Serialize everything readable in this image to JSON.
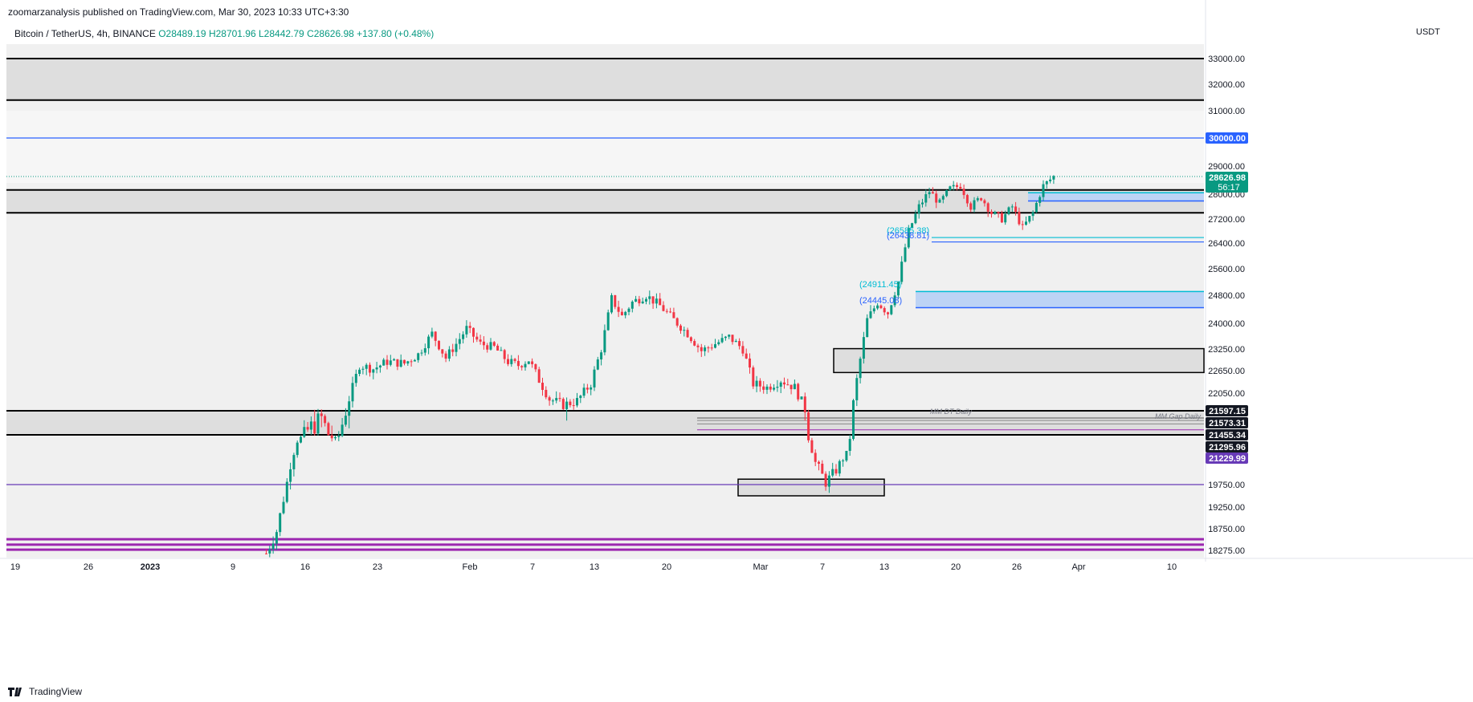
{
  "header": {
    "published": "zoomarzanalysis published on TradingView.com, Mar 30, 2023 10:33 UTC+3:30"
  },
  "legend": {
    "symbol": "Bitcoin / TetherUS, 4h, BINANCE",
    "open": "O28489.19",
    "high": "H28701.96",
    "low": "L28442.79",
    "close": "C28626.98",
    "change": "+137.80 (+0.48%)"
  },
  "currency": "USDT",
  "footer": {
    "brand": "TradingView",
    "logo_icon": "tradingview-logo-icon"
  },
  "colors": {
    "up": "#089981",
    "down": "#f23645",
    "zone_gray": "#dedede",
    "zone_blue": "#bcd3f5",
    "purple": "#9c27b0",
    "blue_line": "#2962ff",
    "cyan": "#00bcd4"
  },
  "chart_data": {
    "type": "candlestick",
    "timeframe": "4h",
    "y_axis": {
      "ticks": [
        33000,
        32000,
        31000,
        29000,
        28000,
        27200,
        26400,
        25600,
        24800,
        24000,
        23250,
        22650,
        22050,
        19750,
        19250,
        18750,
        18275
      ],
      "tick_labels": [
        "33000.00",
        "32000.00",
        "31000.00",
        "29000.00",
        "28000.00",
        "27200.00",
        "26400.00",
        "25600.00",
        "24800.00",
        "24000.00",
        "23250.00",
        "22650.00",
        "22050.00",
        "19750.00",
        "19250.00",
        "18750.00",
        "18275.00"
      ]
    },
    "x_axis": {
      "tick_labels": [
        "19",
        "26",
        "2023",
        "9",
        "16",
        "23",
        "Feb",
        "7",
        "13",
        "20",
        "Mar",
        "7",
        "13",
        "20",
        "26",
        "Apr",
        "10"
      ]
    },
    "price_labels": [
      {
        "text": "30000.00",
        "value": 30000,
        "bg": "#2962ff"
      },
      {
        "text": "28626.98",
        "sub": "56:17",
        "value": 28626.98,
        "bg": "#089981"
      },
      {
        "text": "21597.15",
        "value": 21597.15,
        "bg": "#131722"
      },
      {
        "text": "21573.31",
        "value": 21573.31,
        "bg": "#131722"
      },
      {
        "text": "21455.34",
        "value": 21455.34,
        "bg": "#131722"
      },
      {
        "text": "21295.96",
        "value": 21295.96,
        "bg": "#131722"
      },
      {
        "text": "21229.99",
        "value": 21229.99,
        "bg": "#673ab7"
      }
    ],
    "annotations": [
      {
        "text": "(26585.38)",
        "color": "#00bcd4"
      },
      {
        "text": "(26438.81)",
        "color": "#2962ff"
      },
      {
        "text": "(24911.45)",
        "color": "#00bcd4"
      },
      {
        "text": "(24445.08)",
        "color": "#2962ff"
      },
      {
        "text": "MM DT Daily",
        "color": "#787b86"
      },
      {
        "text": "MM Gap Daily",
        "color": "#787b86"
      }
    ],
    "zones": [
      {
        "name": "zone-gray-top",
        "from": 31400,
        "to": 33000,
        "kind": "gray"
      },
      {
        "name": "zone-gray-28000",
        "from": 27400,
        "to": 28150,
        "kind": "gray"
      },
      {
        "name": "zone-gray-21500",
        "from": 21300,
        "to": 21600,
        "kind": "gray"
      },
      {
        "name": "zone-gray-23000",
        "from": 22600,
        "to": 23260,
        "kind": "gray_box"
      },
      {
        "name": "zone-gray-19900",
        "from": 19500,
        "to": 19880,
        "kind": "gray_box"
      },
      {
        "name": "zone-blue-27900",
        "from": 27780,
        "to": 28050,
        "kind": "blue"
      },
      {
        "name": "zone-blue-24700",
        "from": 24445,
        "to": 24911,
        "kind": "blue"
      }
    ],
    "lines": [
      {
        "name": "line-30000",
        "value": 30000,
        "color": "#2962ff"
      },
      {
        "name": "line-19750",
        "value": 19750,
        "color": "#673ab7"
      },
      {
        "name": "line-purple-1",
        "value": 18520,
        "color": "#9c27b0"
      },
      {
        "name": "line-purple-2",
        "value": 18400,
        "color": "#9c27b0"
      },
      {
        "name": "line-purple-3",
        "value": 18290,
        "color": "#9c27b0"
      },
      {
        "name": "line-26585",
        "value": 26585.38,
        "color": "#00bcd4"
      },
      {
        "name": "line-26438",
        "value": 26438.81,
        "color": "#2962ff"
      }
    ],
    "series_path": [
      [
        0,
        18200
      ],
      [
        3,
        18700
      ],
      [
        6,
        19800
      ],
      [
        9,
        21100
      ],
      [
        12,
        21350
      ],
      [
        16,
        21500
      ],
      [
        20,
        21100
      ],
      [
        23,
        21600
      ],
      [
        27,
        22800
      ],
      [
        31,
        22700
      ],
      [
        35,
        22900
      ],
      [
        40,
        22850
      ],
      [
        44,
        23100
      ],
      [
        48,
        23700
      ],
      [
        52,
        23000
      ],
      [
        55,
        23400
      ],
      [
        58,
        23850
      ],
      [
        62,
        23400
      ],
      [
        66,
        23300
      ],
      [
        70,
        22900
      ],
      [
        73,
        22800
      ],
      [
        76,
        22950
      ],
      [
        79,
        22400
      ],
      [
        82,
        21900
      ],
      [
        86,
        21750
      ],
      [
        90,
        21850
      ],
      [
        94,
        22300
      ],
      [
        97,
        23250
      ],
      [
        100,
        24700
      ],
      [
        103,
        24200
      ],
      [
        106,
        24600
      ],
      [
        110,
        24800
      ],
      [
        114,
        24500
      ],
      [
        118,
        24100
      ],
      [
        122,
        23700
      ],
      [
        126,
        23200
      ],
      [
        130,
        23400
      ],
      [
        134,
        23600
      ],
      [
        138,
        23250
      ],
      [
        141,
        22300
      ],
      [
        145,
        22200
      ],
      [
        149,
        22400
      ],
      [
        153,
        22200
      ],
      [
        156,
        21650
      ],
      [
        159,
        20300
      ],
      [
        162,
        19800
      ],
      [
        165,
        20100
      ],
      [
        168,
        20600
      ],
      [
        171,
        22400
      ],
      [
        174,
        24100
      ],
      [
        177,
        24600
      ],
      [
        180,
        24300
      ],
      [
        183,
        25200
      ],
      [
        186,
        26800
      ],
      [
        189,
        27600
      ],
      [
        192,
        28100
      ],
      [
        195,
        27700
      ],
      [
        198,
        28200
      ],
      [
        201,
        28300
      ],
      [
        204,
        27600
      ],
      [
        207,
        27900
      ],
      [
        210,
        27400
      ],
      [
        213,
        27200
      ],
      [
        216,
        27600
      ],
      [
        219,
        26900
      ],
      [
        222,
        27400
      ],
      [
        225,
        28300
      ],
      [
        228,
        28627
      ]
    ]
  }
}
